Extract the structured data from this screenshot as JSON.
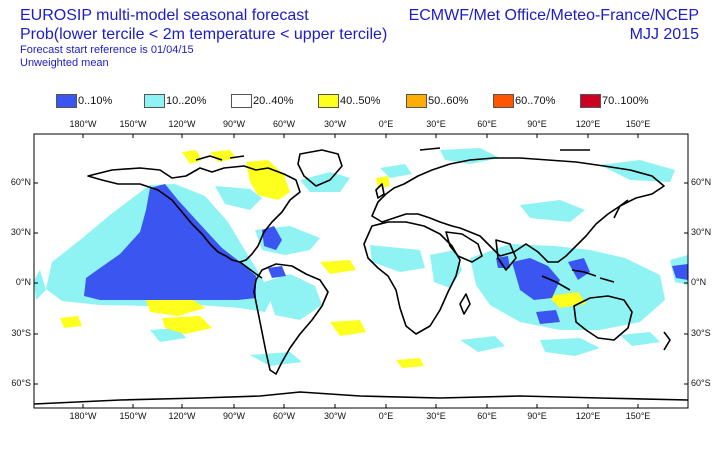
{
  "header": {
    "title": "EUROSIP multi-model seasonal forecast",
    "subtitle": "Prob(lower tercile < 2m temperature < upper tercile)",
    "start_ref": "Forecast start reference is 01/04/15",
    "weighting": "Unweighted mean",
    "centres": "ECMWF/Met Office/Meteo-France/NCEP",
    "season": "MJJ 2015"
  },
  "legend": [
    {
      "label": "0..10%",
      "color": "#3a55f0"
    },
    {
      "label": "10..20%",
      "color": "#8ff3f3"
    },
    {
      "label": "20..40%",
      "color": "#ffffff"
    },
    {
      "label": "40..50%",
      "color": "#ffff1e"
    },
    {
      "label": "50..60%",
      "color": "#ffae00"
    },
    {
      "label": "60..70%",
      "color": "#ff5500"
    },
    {
      "label": "70..100%",
      "color": "#cc0022"
    }
  ],
  "axes": {
    "lon_labels": [
      "180°W",
      "150°W",
      "120°W",
      "90°W",
      "60°W",
      "30°W",
      "0°E",
      "30°E",
      "60°E",
      "90°E",
      "120°E",
      "150°E"
    ],
    "lat_labels": [
      "60°N",
      "30°N",
      "0°N",
      "30°S",
      "60°S"
    ]
  }
}
